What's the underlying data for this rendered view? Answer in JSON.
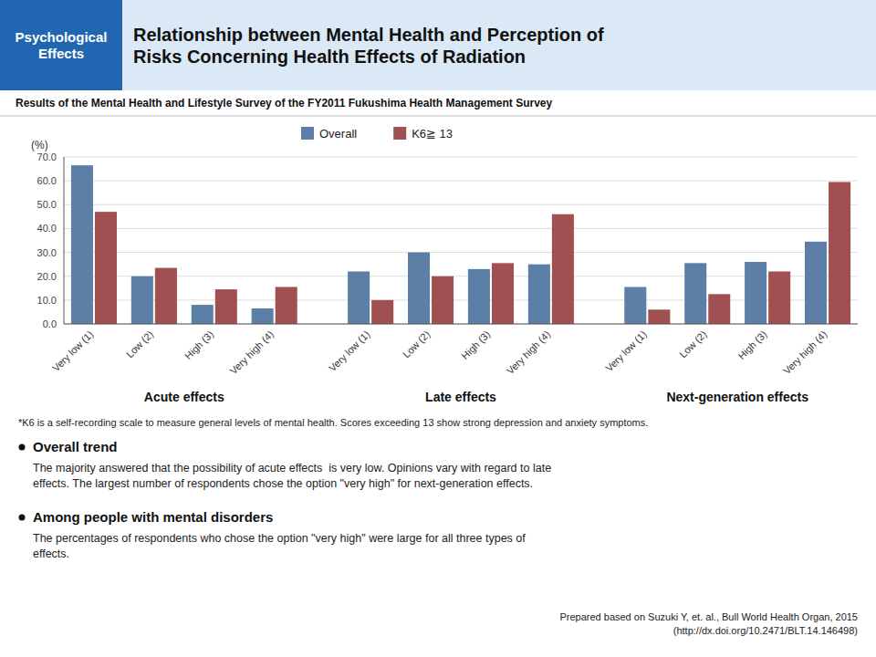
{
  "chart_data": {
    "type": "bar",
    "section_label": "Psychological\nEffects",
    "title": "Relationship between Mental Health and Perception of\nRisks Concerning Health Effects of Radiation",
    "subtitle": "Results of the Mental Health and Lifestyle Survey of the FY2011 Fukushima Health Management Survey",
    "ylabel": "(%)",
    "groups": [
      "Acute effects",
      "Late effects",
      "Next-generation effects"
    ],
    "categories": [
      "Very low (1)",
      "Low (2)",
      "High (3)",
      "Very high (4)",
      "Very low (1)",
      "Low (2)",
      "High (3)",
      "Very high (4)",
      "Very low (1)",
      "Low (2)",
      "High (3)",
      "Very high (4)"
    ],
    "series": [
      {
        "name": "Overall",
        "color": "#5B7FA6",
        "values": [
          66.5,
          20.0,
          8.0,
          6.5,
          22.0,
          30.0,
          23.0,
          25.0,
          15.5,
          25.5,
          26.0,
          34.5
        ]
      },
      {
        "name": "K6≧ 13",
        "color": "#A05050",
        "values": [
          47.0,
          23.5,
          14.5,
          15.5,
          10.0,
          20.0,
          25.5,
          46.0,
          6.0,
          12.5,
          22.0,
          59.5
        ]
      }
    ],
    "ylim": [
      0,
      70
    ],
    "yticks": [
      {
        "value": 0,
        "label": "0.0"
      },
      {
        "value": 10,
        "label": "10.0"
      },
      {
        "value": 20,
        "label": "20.0"
      },
      {
        "value": 30,
        "label": "30.0"
      },
      {
        "value": 40,
        "label": "40.0"
      },
      {
        "value": 50,
        "label": "50.0"
      },
      {
        "value": 60,
        "label": "60.0"
      },
      {
        "value": 70,
        "label": "70.0"
      }
    ],
    "grid": true,
    "legend": "top",
    "footnote": "*K6 is a self-recording scale to measure general levels of mental health. Scores exceeding 13 show strong depression and anxiety symptoms.",
    "notes": [
      {
        "title": "Overall trend",
        "text": "The majority answered that the possibility of acute effects  is very low. Opinions vary with regard to late\neffects. The largest number of respondents chose the option \"very high\" for next-generation effects."
      },
      {
        "title": "Among people with mental disorders",
        "text": "The percentages of respondents who chose the option \"very high\" were large for all three types of\neffects."
      }
    ],
    "source": "Prepared based on Suzuki Y, et. al., Bull World Health Organ, 2015\n(http://dx.doi.org/10.2471/BLT.14.146498)"
  }
}
